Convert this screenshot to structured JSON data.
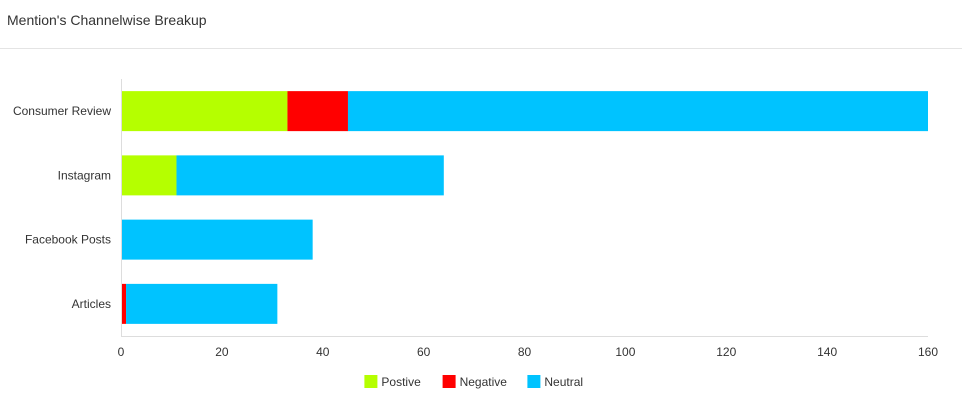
{
  "panel": {
    "title": "Mention's Channelwise Breakup"
  },
  "chart_data": {
    "type": "bar",
    "orientation": "horizontal",
    "stacked": true,
    "title": "",
    "xlabel": "",
    "ylabel": "",
    "categories": [
      "Consumer Review",
      "Instagram",
      "Facebook Posts",
      "Articles"
    ],
    "series": [
      {
        "name": "Postive",
        "color": "#b5ff00",
        "values": [
          33,
          11,
          0,
          0
        ]
      },
      {
        "name": "Negative",
        "color": "#ff0000",
        "values": [
          12,
          0,
          0,
          1
        ]
      },
      {
        "name": "Neutral",
        "color": "#00c3ff",
        "values": [
          115,
          53,
          38,
          30
        ]
      }
    ],
    "xlim": [
      0,
      160
    ],
    "xticks": [
      0,
      20,
      40,
      60,
      80,
      100,
      120,
      140,
      160
    ],
    "grid": false,
    "legend_position": "bottom-center"
  }
}
